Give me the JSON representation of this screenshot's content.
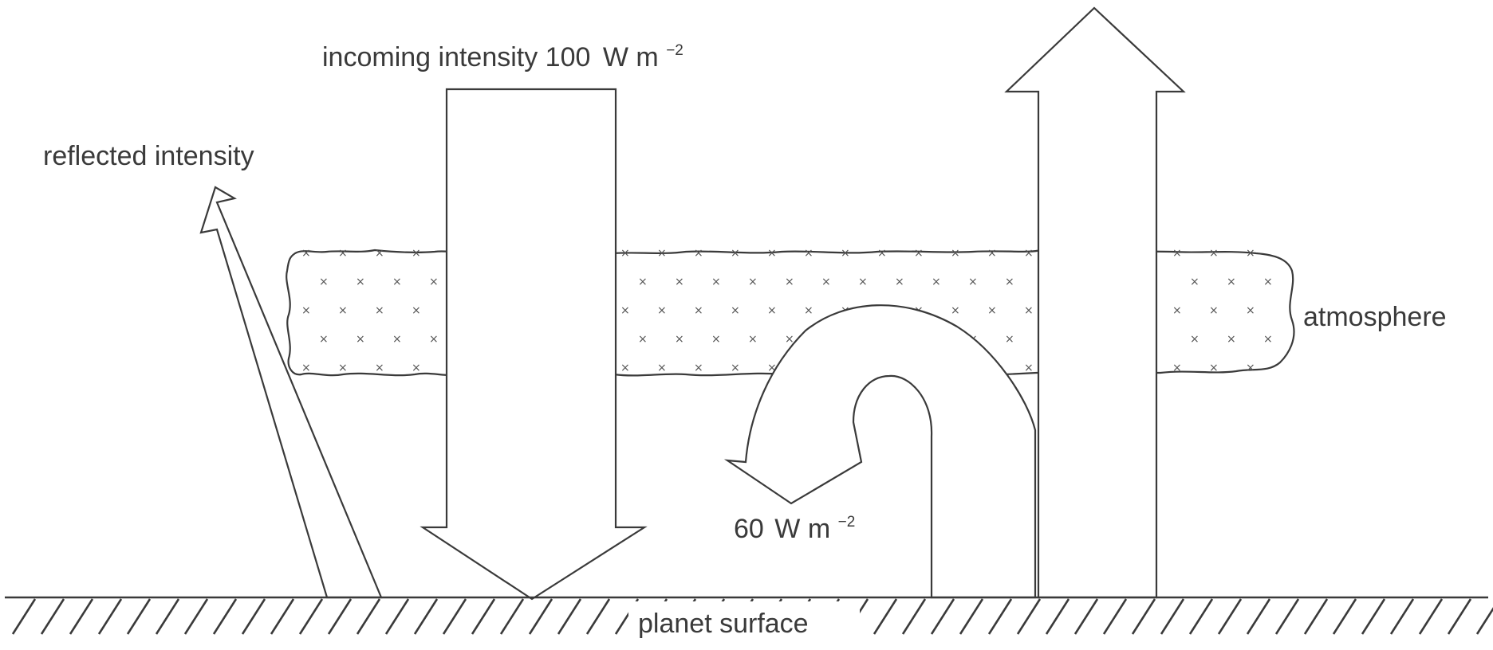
{
  "labels": {
    "incoming_text": "incoming intensity 100",
    "incoming_unit": "W m",
    "incoming_exponent": "−2",
    "reflected": "reflected intensity",
    "atmosphere": "atmosphere",
    "back_radiation_value": "60",
    "back_radiation_unit": "W m",
    "back_radiation_exponent": "−2",
    "surface": "planet surface"
  },
  "icons": {
    "atmosphere_marker": "×"
  },
  "colors": {
    "line": "#3a3a3a",
    "background": "#ffffff"
  }
}
